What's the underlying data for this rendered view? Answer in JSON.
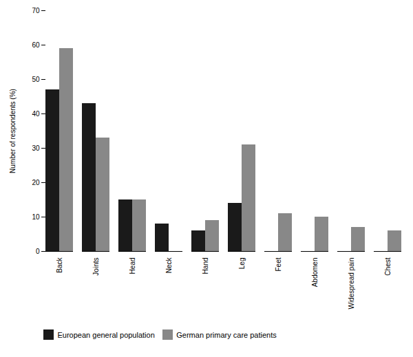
{
  "chart_data": {
    "type": "bar",
    "categories": [
      "Back",
      "Joints",
      "Head",
      "Neck",
      "Hand",
      "Leg",
      "Feet",
      "Abdomen",
      "Widespread pain",
      "Chest"
    ],
    "series": [
      {
        "name": "European general population",
        "color": "#1a1a1a",
        "values": [
          47,
          43,
          15,
          8,
          6,
          14,
          0,
          0,
          0,
          0
        ]
      },
      {
        "name": "German primary care patients",
        "color": "#888888",
        "values": [
          59,
          33,
          15,
          0,
          9,
          31,
          11,
          10,
          7,
          6
        ]
      }
    ],
    "ylabel": "Number of respondents (%)",
    "ylim": [
      0,
      70
    ],
    "yticks": [
      0,
      10,
      20,
      30,
      40,
      50,
      60,
      70
    ],
    "grid": false,
    "legend": "bottom"
  }
}
